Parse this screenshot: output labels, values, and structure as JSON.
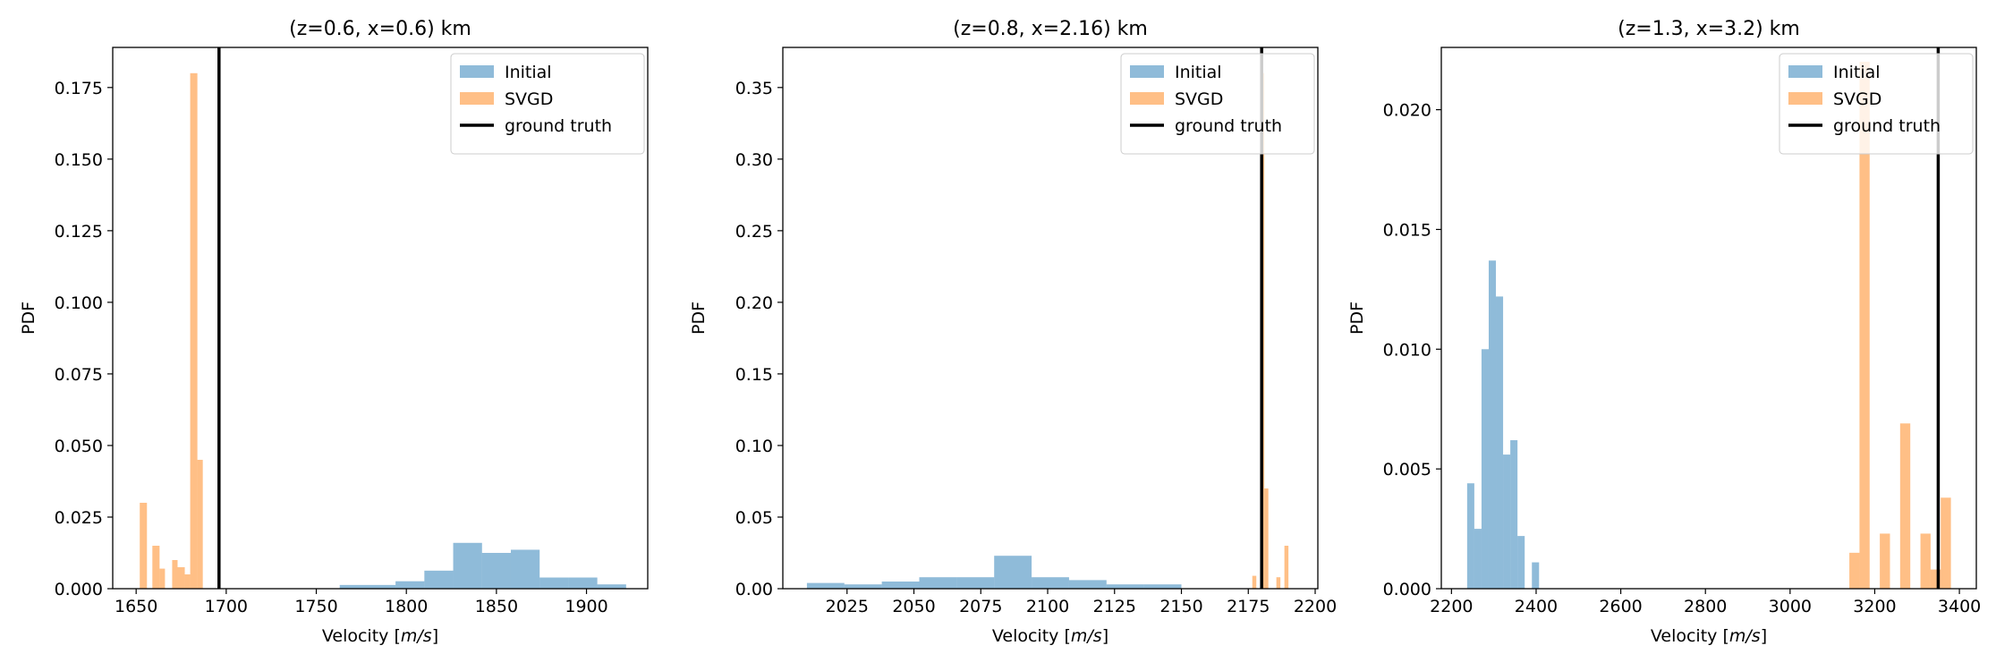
{
  "chart_data": [
    {
      "type": "histogram",
      "title": "(z=0.6, x=0.6) km",
      "xlabel": "Velocity [m/s]",
      "ylabel": "PDF",
      "xlim": [
        1637,
        1934
      ],
      "ylim": [
        0,
        0.189
      ],
      "xticks": [
        1650,
        1700,
        1750,
        1800,
        1850,
        1900
      ],
      "xtick_labels": [
        "1650",
        "1700",
        "1750",
        "1800",
        "1850",
        "1900"
      ],
      "yticks": [
        0,
        0.025,
        0.05,
        0.075,
        0.1,
        0.125,
        0.15,
        0.175
      ],
      "ytick_labels": [
        "0.000",
        "0.025",
        "0.050",
        "0.075",
        "0.100",
        "0.125",
        "0.150",
        "0.175"
      ],
      "legend_position": "upper-right",
      "legend": [
        "Initial",
        "SVGD",
        "ground truth"
      ],
      "ground_truth": 1696,
      "series": [
        {
          "name": "Initial",
          "color": "#1f77b4",
          "opacity": 0.5,
          "bins": [
            [
              1763,
              1794,
              0.0013
            ],
            [
              1794,
              1810,
              0.0026
            ],
            [
              1810,
              1826,
              0.0063
            ],
            [
              1826,
              1842,
              0.016
            ],
            [
              1842,
              1858,
              0.0125
            ],
            [
              1858,
              1874,
              0.0136
            ],
            [
              1874,
              1890,
              0.0039
            ],
            [
              1890,
              1906,
              0.0039
            ],
            [
              1906,
              1922,
              0.0015
            ]
          ]
        },
        {
          "name": "SVGD",
          "color": "#ff7f0e",
          "opacity": 0.5,
          "bins": [
            [
              1652,
              1656,
              0.03
            ],
            [
              1656,
              1659,
              0.0
            ],
            [
              1659,
              1663,
              0.015
            ],
            [
              1663,
              1666,
              0.007
            ],
            [
              1666,
              1670,
              0.0
            ],
            [
              1670,
              1673,
              0.01
            ],
            [
              1673,
              1677,
              0.0075
            ],
            [
              1677,
              1680,
              0.005
            ],
            [
              1680,
              1684,
              0.18
            ],
            [
              1684,
              1687,
              0.045
            ]
          ]
        }
      ]
    },
    {
      "type": "histogram",
      "title": "(z=0.8, x=2.16) km",
      "xlabel": "Velocity [m/s]",
      "ylabel": "PDF",
      "xlim": [
        2001,
        2201
      ],
      "ylim": [
        0,
        0.378
      ],
      "xticks": [
        2025,
        2050,
        2075,
        2100,
        2125,
        2150,
        2175,
        2200
      ],
      "xtick_labels": [
        "2025",
        "2050",
        "2075",
        "2100",
        "2125",
        "2150",
        "2175",
        "2200"
      ],
      "yticks": [
        0,
        0.05,
        0.1,
        0.15,
        0.2,
        0.25,
        0.3,
        0.35
      ],
      "ytick_labels": [
        "0.00",
        "0.05",
        "0.10",
        "0.15",
        "0.20",
        "0.25",
        "0.30",
        "0.35"
      ],
      "legend_position": "upper-right",
      "legend": [
        "Initial",
        "SVGD",
        "ground truth"
      ],
      "ground_truth": 2180,
      "series": [
        {
          "name": "Initial",
          "color": "#1f77b4",
          "opacity": 0.5,
          "bins": [
            [
              2010,
              2024,
              0.004
            ],
            [
              2024,
              2038,
              0.003
            ],
            [
              2038,
              2052,
              0.005
            ],
            [
              2052,
              2066,
              0.008
            ],
            [
              2066,
              2080,
              0.008
            ],
            [
              2080,
              2094,
              0.023
            ],
            [
              2094,
              2108,
              0.008
            ],
            [
              2108,
              2122,
              0.006
            ],
            [
              2122,
              2136,
              0.003
            ],
            [
              2136,
              2150,
              0.003
            ]
          ]
        },
        {
          "name": "SVGD",
          "color": "#ff7f0e",
          "opacity": 0.5,
          "bins": [
            [
              2176.5,
              2178,
              0.009
            ],
            [
              2178,
              2179.5,
              0.0
            ],
            [
              2179.5,
              2181,
              0.36
            ],
            [
              2181,
              2182.5,
              0.07
            ],
            [
              2182.5,
              2184,
              0.0
            ],
            [
              2184,
              2185.5,
              0.0
            ],
            [
              2185.5,
              2187,
              0.008
            ],
            [
              2187,
              2188.5,
              0.0
            ],
            [
              2188.5,
              2190,
              0.03
            ]
          ]
        }
      ]
    },
    {
      "type": "histogram",
      "title": "(z=1.3, x=3.2) km",
      "xlabel": "Velocity [m/s]",
      "ylabel": "PDF",
      "xlim": [
        2176,
        3440
      ],
      "ylim": [
        0,
        0.0226
      ],
      "xticks": [
        2200,
        2400,
        2600,
        2800,
        3000,
        3200,
        3400
      ],
      "xtick_labels": [
        "2200",
        "2400",
        "2600",
        "2800",
        "3000",
        "3200",
        "3400"
      ],
      "yticks": [
        0,
        0.005,
        0.01,
        0.015,
        0.02
      ],
      "ytick_labels": [
        "0.000",
        "0.005",
        "0.010",
        "0.015",
        "0.020"
      ],
      "legend_position": "upper-right",
      "legend": [
        "Initial",
        "SVGD",
        "ground truth"
      ],
      "ground_truth": 3350,
      "series": [
        {
          "name": "Initial",
          "color": "#1f77b4",
          "opacity": 0.5,
          "bins": [
            [
              2237,
              2254,
              0.0044
            ],
            [
              2254,
              2271,
              0.0025
            ],
            [
              2271,
              2288,
              0.01
            ],
            [
              2288,
              2305,
              0.0137
            ],
            [
              2305,
              2322,
              0.0122
            ],
            [
              2322,
              2339,
              0.0056
            ],
            [
              2339,
              2356,
              0.0062
            ],
            [
              2356,
              2373,
              0.0022
            ],
            [
              2373,
              2390,
              0.0
            ],
            [
              2390,
              2407,
              0.0011
            ]
          ]
        },
        {
          "name": "SVGD",
          "color": "#ff7f0e",
          "opacity": 0.5,
          "bins": [
            [
              3140,
              3164,
              0.0015
            ],
            [
              3164,
              3188,
              0.022
            ],
            [
              3188,
              3212,
              0.0
            ],
            [
              3212,
              3236,
              0.0023
            ],
            [
              3236,
              3260,
              0.0
            ],
            [
              3260,
              3284,
              0.0069
            ],
            [
              3284,
              3308,
              0.0
            ],
            [
              3308,
              3332,
              0.0023
            ],
            [
              3332,
              3356,
              0.0008
            ],
            [
              3356,
              3380,
              0.0038
            ]
          ]
        }
      ]
    }
  ]
}
